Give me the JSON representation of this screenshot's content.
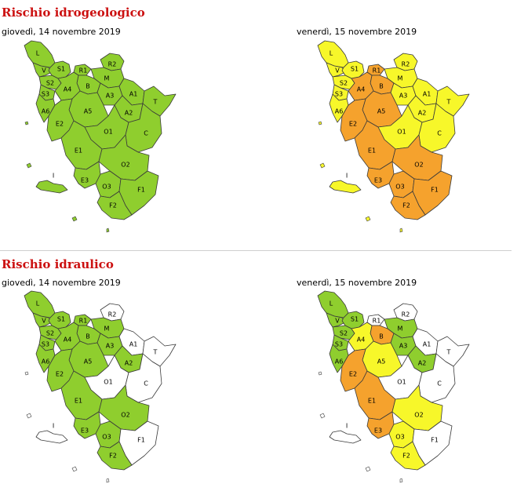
{
  "sections": [
    {
      "title": "Rischio idrogeologico"
    },
    {
      "title": "Rischio idraulico"
    }
  ],
  "dates": {
    "day1": "giovedì, 14 novembre 2019",
    "day2": "venerdì, 15 novembre 2019"
  },
  "colors": {
    "green": "#8fce2e",
    "yellow": "#f7f72a",
    "orange": "#f5a22d",
    "white": "#ffffff"
  },
  "zone_labels": [
    "L",
    "V",
    "S1",
    "S2",
    "S3",
    "R1",
    "R2",
    "M",
    "B",
    "A4",
    "A3",
    "A1",
    "T",
    "A6",
    "A2",
    "A5",
    "O1",
    "C",
    "E2",
    "E1",
    "O2",
    "I",
    "E3",
    "O3",
    "F1",
    "F2"
  ],
  "maps": [
    {
      "id": "idro-d1",
      "levels": {
        "L": "green",
        "V": "green",
        "S1": "green",
        "S2": "green",
        "S3": "green",
        "R1": "green",
        "R2": "green",
        "M": "green",
        "B": "green",
        "A4": "green",
        "A3": "green",
        "A1": "green",
        "T": "green",
        "A6": "green",
        "A2": "green",
        "A5": "green",
        "O1": "green",
        "C": "green",
        "E2": "green",
        "E1": "green",
        "O2": "green",
        "I": "green",
        "E3": "green",
        "O3": "green",
        "F1": "green",
        "F2": "green"
      }
    },
    {
      "id": "idro-d2",
      "levels": {
        "L": "yellow",
        "V": "yellow",
        "S1": "yellow",
        "S2": "yellow",
        "S3": "yellow",
        "R1": "orange",
        "R2": "yellow",
        "M": "yellow",
        "B": "orange",
        "A4": "orange",
        "A3": "yellow",
        "A1": "yellow",
        "T": "yellow",
        "A6": "yellow",
        "A2": "yellow",
        "A5": "orange",
        "O1": "yellow",
        "C": "yellow",
        "E2": "orange",
        "E1": "orange",
        "O2": "orange",
        "I": "yellow",
        "E3": "orange",
        "O3": "orange",
        "F1": "orange",
        "F2": "orange"
      }
    },
    {
      "id": "idra-d1",
      "levels": {
        "L": "green",
        "V": "green",
        "S1": "green",
        "S2": "green",
        "S3": "green",
        "R1": "green",
        "R2": "white",
        "M": "green",
        "B": "green",
        "A4": "green",
        "A3": "green",
        "A1": "white",
        "T": "white",
        "A6": "green",
        "A2": "green",
        "A5": "green",
        "O1": "white",
        "C": "white",
        "E2": "green",
        "E1": "green",
        "O2": "green",
        "I": "white",
        "E3": "green",
        "O3": "green",
        "F1": "white",
        "F2": "green"
      }
    },
    {
      "id": "idra-d2",
      "levels": {
        "L": "green",
        "V": "green",
        "S1": "green",
        "S2": "green",
        "S3": "green",
        "R1": "white",
        "R2": "white",
        "M": "green",
        "B": "orange",
        "A4": "yellow",
        "A3": "green",
        "A1": "white",
        "T": "white",
        "A6": "green",
        "A2": "green",
        "A5": "yellow",
        "O1": "white",
        "C": "white",
        "E2": "orange",
        "E1": "orange",
        "O2": "yellow",
        "I": "white",
        "E3": "orange",
        "O3": "yellow",
        "F1": "white",
        "F2": "yellow"
      }
    }
  ]
}
